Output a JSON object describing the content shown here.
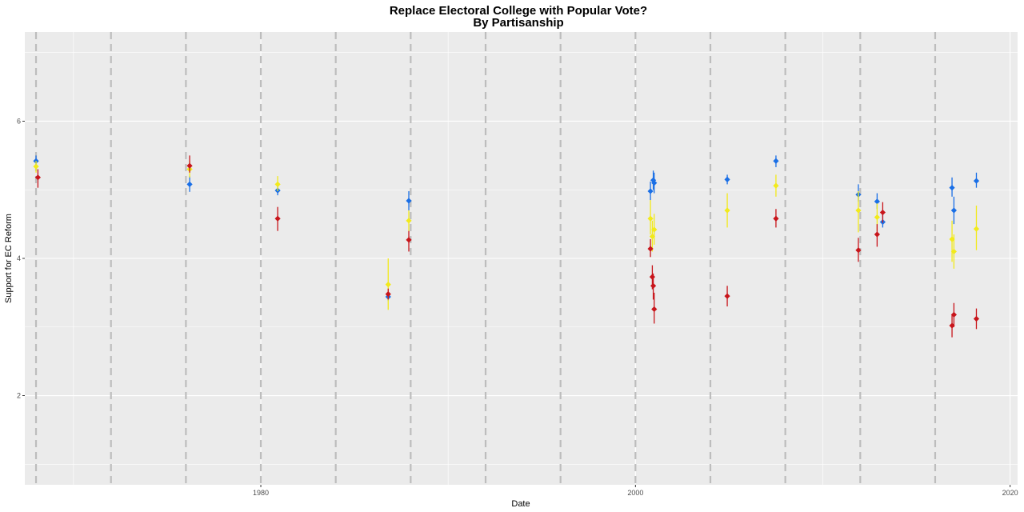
{
  "chart_data": {
    "type": "scatter",
    "title": "Replace Electoral College with Popular Vote?",
    "subtitle": "By Partisanship",
    "xlabel": "Date",
    "ylabel": "Support for EC Reform",
    "x_ticks": [
      1980,
      2000,
      2020
    ],
    "y_ticks": [
      2,
      4,
      6
    ],
    "xlim": [
      1967.4,
      2020.4
    ],
    "ylim": [
      0.7,
      7.3
    ],
    "grid": true,
    "legend": "none",
    "colors": {
      "Democrat": "#1a6fe6",
      "Independent": "#f2ea1b",
      "Republican": "#c8151b",
      "election_line": "#bdbdbd",
      "panel": "#ebebeb",
      "grid": "#ffffff"
    },
    "election_years": [
      1968,
      1972,
      1976,
      1980,
      1984,
      1988,
      1992,
      1996,
      2000,
      2004,
      2008,
      2012,
      2016
    ],
    "series": [
      {
        "color_key": "Democrat",
        "points": [
          {
            "x": 1968.0,
            "y": 5.42,
            "lo": 5.35,
            "hi": 5.5
          },
          {
            "x": 1976.2,
            "y": 5.08,
            "lo": 4.97,
            "hi": 5.2
          },
          {
            "x": 1980.9,
            "y": 4.99,
            "lo": 4.92,
            "hi": 5.08
          },
          {
            "x": 1986.8,
            "y": 3.44,
            "lo": 3.38,
            "hi": 3.5
          },
          {
            "x": 1987.9,
            "y": 4.84,
            "lo": 4.7,
            "hi": 4.98
          },
          {
            "x": 2000.8,
            "y": 4.98,
            "lo": 4.85,
            "hi": 5.12
          },
          {
            "x": 2000.95,
            "y": 5.14,
            "lo": 5.0,
            "hi": 5.28
          },
          {
            "x": 2001.0,
            "y": 5.1,
            "lo": 4.95,
            "hi": 5.25
          },
          {
            "x": 2004.9,
            "y": 5.15,
            "lo": 5.08,
            "hi": 5.22
          },
          {
            "x": 2007.5,
            "y": 5.42,
            "lo": 5.33,
            "hi": 5.5
          },
          {
            "x": 2011.9,
            "y": 4.93,
            "lo": 4.83,
            "hi": 5.08
          },
          {
            "x": 2012.9,
            "y": 4.83,
            "lo": 4.72,
            "hi": 4.95
          },
          {
            "x": 2013.2,
            "y": 4.53,
            "lo": 4.45,
            "hi": 4.65
          },
          {
            "x": 2016.9,
            "y": 5.03,
            "lo": 4.9,
            "hi": 5.18
          },
          {
            "x": 2017.0,
            "y": 4.7,
            "lo": 4.5,
            "hi": 4.9
          },
          {
            "x": 2018.2,
            "y": 5.13,
            "lo": 5.03,
            "hi": 5.25
          }
        ]
      },
      {
        "color_key": "Independent",
        "points": [
          {
            "x": 1968.0,
            "y": 5.34,
            "lo": 5.25,
            "hi": 5.42
          },
          {
            "x": 1976.2,
            "y": 5.3,
            "lo": 5.18,
            "hi": 5.42
          },
          {
            "x": 1980.9,
            "y": 5.08,
            "lo": 4.98,
            "hi": 5.2
          },
          {
            "x": 1986.8,
            "y": 3.62,
            "lo": 3.25,
            "hi": 4.0
          },
          {
            "x": 1987.9,
            "y": 4.55,
            "lo": 4.4,
            "hi": 4.7
          },
          {
            "x": 2000.8,
            "y": 4.58,
            "lo": 4.35,
            "hi": 4.85
          },
          {
            "x": 2000.9,
            "y": 4.32,
            "lo": 4.1,
            "hi": 4.55
          },
          {
            "x": 2001.0,
            "y": 4.42,
            "lo": 4.2,
            "hi": 4.65
          },
          {
            "x": 2004.9,
            "y": 4.7,
            "lo": 4.45,
            "hi": 4.95
          },
          {
            "x": 2007.5,
            "y": 5.06,
            "lo": 4.9,
            "hi": 5.22
          },
          {
            "x": 2011.9,
            "y": 4.7,
            "lo": 4.38,
            "hi": 4.98
          },
          {
            "x": 2012.9,
            "y": 4.6,
            "lo": 4.4,
            "hi": 4.8
          },
          {
            "x": 2016.9,
            "y": 4.28,
            "lo": 3.95,
            "hi": 4.55
          },
          {
            "x": 2017.0,
            "y": 4.1,
            "lo": 3.85,
            "hi": 4.35
          },
          {
            "x": 2018.2,
            "y": 4.43,
            "lo": 4.12,
            "hi": 4.77
          }
        ]
      },
      {
        "color_key": "Republican",
        "points": [
          {
            "x": 1968.1,
            "y": 5.18,
            "lo": 5.03,
            "hi": 5.3
          },
          {
            "x": 1976.2,
            "y": 5.35,
            "lo": 5.25,
            "hi": 5.5
          },
          {
            "x": 1980.9,
            "y": 4.58,
            "lo": 4.4,
            "hi": 4.75
          },
          {
            "x": 1986.8,
            "y": 3.48,
            "lo": 3.4,
            "hi": 3.56
          },
          {
            "x": 1987.9,
            "y": 4.27,
            "lo": 4.1,
            "hi": 4.4
          },
          {
            "x": 2000.8,
            "y": 4.14,
            "lo": 4.02,
            "hi": 4.28
          },
          {
            "x": 2000.9,
            "y": 3.73,
            "lo": 3.55,
            "hi": 3.9
          },
          {
            "x": 2000.95,
            "y": 3.6,
            "lo": 3.4,
            "hi": 3.78
          },
          {
            "x": 2001.0,
            "y": 3.26,
            "lo": 3.05,
            "hi": 3.5
          },
          {
            "x": 2004.9,
            "y": 3.45,
            "lo": 3.3,
            "hi": 3.6
          },
          {
            "x": 2007.5,
            "y": 4.58,
            "lo": 4.45,
            "hi": 4.72
          },
          {
            "x": 2011.9,
            "y": 4.12,
            "lo": 3.95,
            "hi": 4.3
          },
          {
            "x": 2012.9,
            "y": 4.35,
            "lo": 4.17,
            "hi": 4.5
          },
          {
            "x": 2013.2,
            "y": 4.67,
            "lo": 4.52,
            "hi": 4.82
          },
          {
            "x": 2016.9,
            "y": 3.02,
            "lo": 2.85,
            "hi": 3.18
          },
          {
            "x": 2017.0,
            "y": 3.18,
            "lo": 3.0,
            "hi": 3.35
          },
          {
            "x": 2018.2,
            "y": 3.12,
            "lo": 2.97,
            "hi": 3.27
          }
        ]
      }
    ]
  }
}
